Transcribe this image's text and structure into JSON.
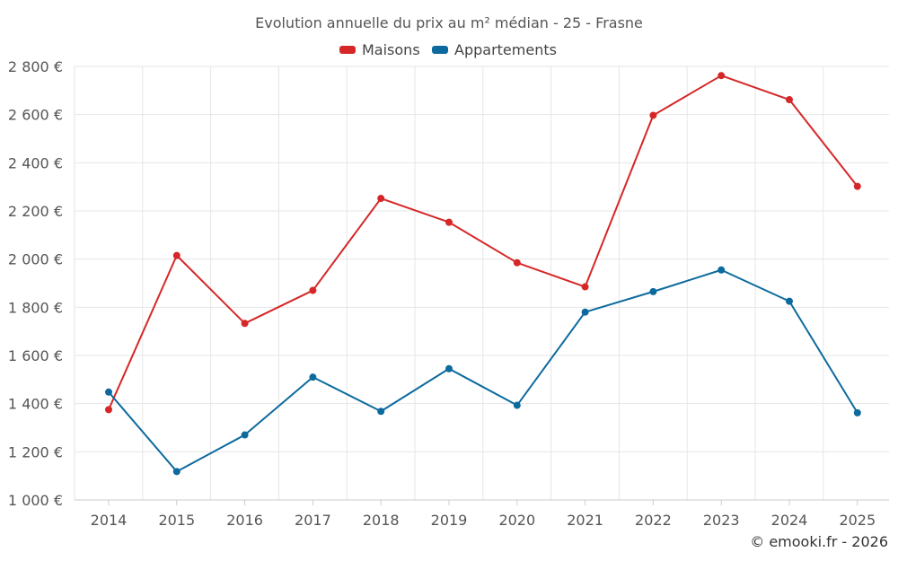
{
  "chart_data": {
    "type": "line",
    "title": "Evolution annuelle du prix au m² médian - 25 - Frasne",
    "categories": [
      "2014",
      "2015",
      "2016",
      "2017",
      "2018",
      "2019",
      "2020",
      "2021",
      "2022",
      "2023",
      "2024",
      "2025"
    ],
    "series": [
      {
        "name": "Maisons",
        "color": "#d62728",
        "values": [
          1375,
          2015,
          1733,
          1870,
          2252,
          2153,
          1985,
          1885,
          2597,
          2762,
          2662,
          2302
        ]
      },
      {
        "name": "Appartements",
        "color": "#0d6a9e",
        "values": [
          1448,
          1118,
          1270,
          1510,
          1368,
          1545,
          1393,
          1780,
          1865,
          1955,
          1825,
          1362
        ]
      }
    ],
    "ylim": [
      1000,
      2800
    ],
    "yticks": [
      1000,
      1200,
      1400,
      1600,
      1800,
      2000,
      2200,
      2400,
      2600,
      2800
    ],
    "ytick_labels": [
      "1 000 €",
      "1 200 €",
      "1 400 €",
      "1 600 €",
      "1 800 €",
      "2 000 €",
      "2 200 €",
      "2 400 €",
      "2 600 €",
      "2 800 €"
    ],
    "xlabel": "",
    "ylabel": "",
    "grid": true,
    "legend_position": "top-center"
  },
  "credit": "© emooki.fr - 2026"
}
